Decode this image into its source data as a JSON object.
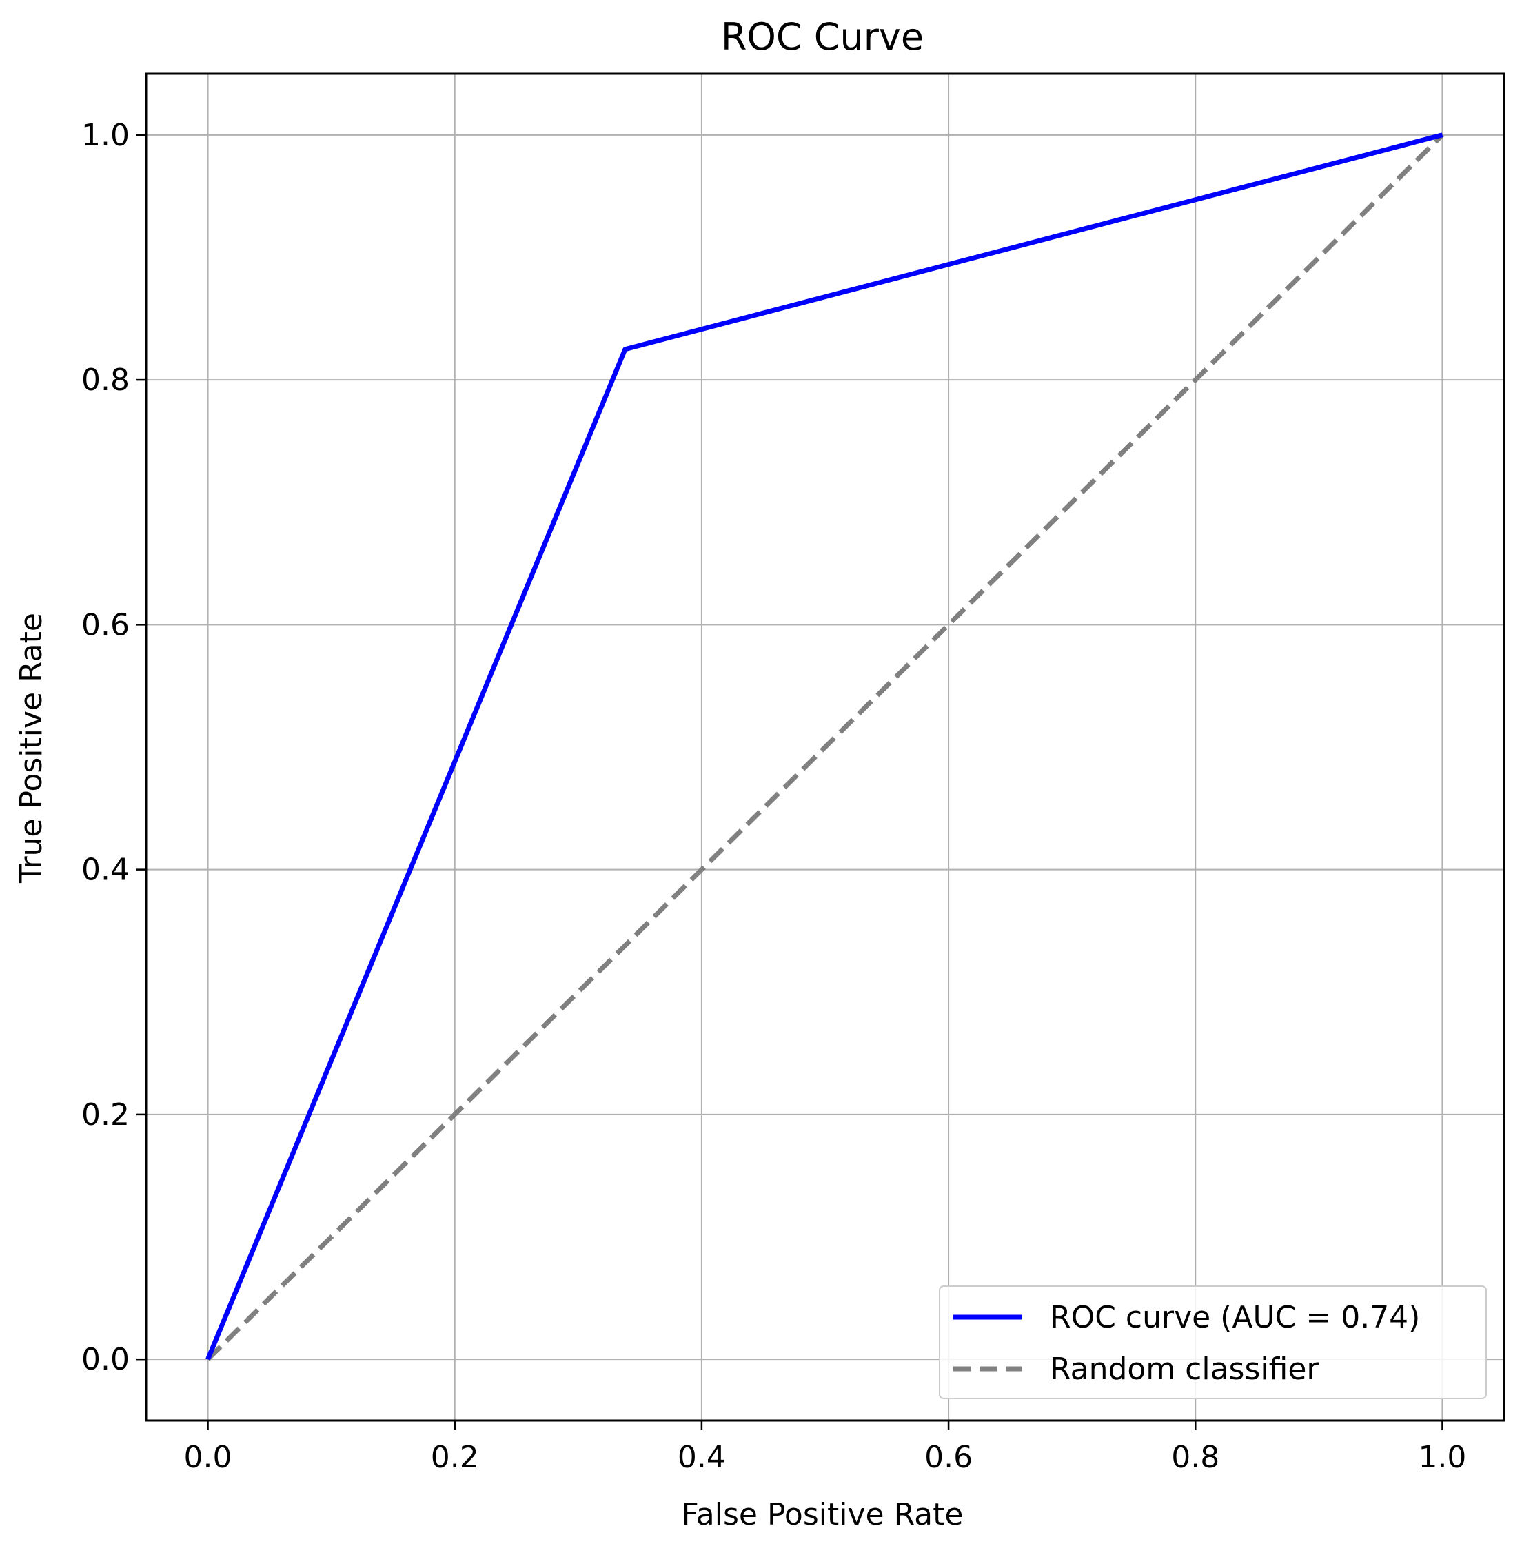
{
  "chart_data": {
    "type": "line",
    "title": "ROC Curve",
    "xlabel": "False Positive Rate",
    "ylabel": "True Positive Rate",
    "xlim": [
      -0.05,
      1.05
    ],
    "ylim": [
      -0.05,
      1.05
    ],
    "xticks": [
      0.0,
      0.2,
      0.4,
      0.6,
      0.8,
      1.0
    ],
    "yticks": [
      0.0,
      0.2,
      0.4,
      0.6,
      0.8,
      1.0
    ],
    "xtick_labels": [
      "0.0",
      "0.2",
      "0.4",
      "0.6",
      "0.8",
      "1.0"
    ],
    "ytick_labels": [
      "0.0",
      "0.2",
      "0.4",
      "0.6",
      "0.8",
      "1.0"
    ],
    "grid": true,
    "legend_position": "lower-right",
    "series": [
      {
        "name": "ROC curve (AUC = 0.74)",
        "color": "#0000ff",
        "style": "solid",
        "x": [
          0.0,
          0.338,
          1.0
        ],
        "y": [
          0.0,
          0.825,
          1.0
        ]
      },
      {
        "name": "Random classifier",
        "color": "#808080",
        "style": "dashed",
        "x": [
          0.0,
          1.0
        ],
        "y": [
          0.0,
          1.0
        ]
      }
    ]
  }
}
